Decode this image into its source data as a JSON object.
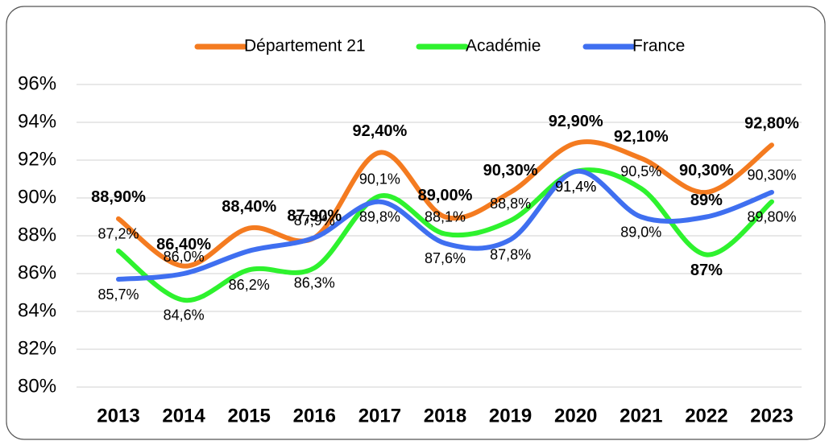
{
  "chart_data": {
    "type": "line",
    "categories": [
      "2013",
      "2014",
      "2015",
      "2016",
      "2017",
      "2018",
      "2019",
      "2020",
      "2021",
      "2022",
      "2023"
    ],
    "series": [
      {
        "name": "Département 21",
        "color": "#f47b20",
        "values": [
          88.9,
          86.4,
          88.4,
          87.9,
          92.4,
          89.0,
          90.3,
          92.9,
          92.1,
          90.3,
          92.8
        ],
        "value_labels": [
          "88,90%",
          "86,40%",
          "88,40%",
          "87,90%",
          "92,40%",
          "89,00%",
          "90,30%",
          "92,90%",
          "92,10%",
          "90,30%",
          "92,80%"
        ]
      },
      {
        "name": "Académie",
        "color": "#2ef22e",
        "values": [
          87.2,
          84.6,
          86.2,
          86.3,
          90.1,
          88.1,
          88.8,
          91.4,
          90.5,
          87,
          89.8
        ],
        "value_labels": [
          "87,2%",
          "84,6%",
          "86,2%",
          "86,3%",
          "90,1%",
          "88,1%",
          "88,8%",
          "91,4%",
          "90,5%",
          "87%",
          "89,80%"
        ]
      },
      {
        "name": "France",
        "color": "#3f6ff0",
        "values": [
          85.7,
          86.0,
          87.2,
          87.9,
          89.8,
          87.6,
          87.8,
          91.4,
          89.0,
          89,
          90.3
        ],
        "value_labels": [
          "85,7%",
          "86,0%",
          null,
          "87,9%",
          "89,8%",
          "87,6%",
          "87,8%",
          "91,4%",
          "89,0%",
          "89%",
          "90,30%"
        ]
      }
    ],
    "ylim": [
      80,
      96
    ],
    "yticks": [
      {
        "value": 80,
        "label": "80%"
      },
      {
        "value": 82,
        "label": "82%"
      },
      {
        "value": 84,
        "label": "84%"
      },
      {
        "value": 86,
        "label": "86%"
      },
      {
        "value": 88,
        "label": "88%"
      },
      {
        "value": 90,
        "label": "90%"
      },
      {
        "value": 92,
        "label": "92%"
      },
      {
        "value": 94,
        "label": "94%"
      },
      {
        "value": 96,
        "label": "96%"
      }
    ],
    "grid": true,
    "legend": "top"
  }
}
